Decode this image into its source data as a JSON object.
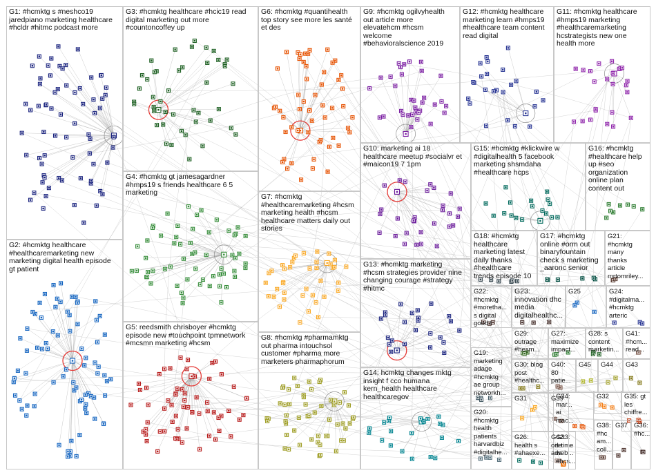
{
  "groups": [
    {
      "id": "G1",
      "label": "G1: #hcmktg s #neshco19\njaredpiano marketing healthcare\n#hcldr #hitmc podcast more",
      "color": "#1a237e",
      "nodes": 70
    },
    {
      "id": "G2",
      "label": "G2: #hcmktg healthcare\n#healthcaremarketing new\nmarketing digital health episode\ngt patient",
      "color": "#1565c0",
      "nodes": 80
    },
    {
      "id": "G3",
      "label": "G3: #hcmktg healthcare #hcic19 read\ndigital marketing out more\n#countoncoffey up",
      "color": "#1b5e20",
      "nodes": 45
    },
    {
      "id": "G4",
      "label": "G4: #hcmktg gt jamesagardner\n#hmps19 s friends healthcare 6 5\nmarketing",
      "color": "#388e3c",
      "nodes": 60
    },
    {
      "id": "G5",
      "label": "G5: reedsmith chrisboyer #hcmktg\nepisode new #touchpoint tpmnetwork\n#mcsmn marketing #hcsm",
      "color": "#b71c1c",
      "nodes": 65
    },
    {
      "id": "G6",
      "label": "G6: #hcmktg #quantihealth\ntop story see more les santé\net des",
      "color": "#e65100",
      "nodes": 55
    },
    {
      "id": "G7",
      "label": "G7: #hcmktg\n#healthcaremarketing #hcsm\nmarketing health #hcsm\nhealthcare matters daily out\nstories",
      "color": "#f9a825",
      "nodes": 40
    },
    {
      "id": "G8",
      "label": "G8: #hcmktg #pharmamktg\nout pharma intouchsol\ncustomer #pharma more\nmarketers pharmaphorum",
      "color": "#9e9d24",
      "nodes": 55
    },
    {
      "id": "G9",
      "label": "G9: #hcmktg ogilvyhealth\nout article more\nelevatehcm #hcsm\nwelcome\n#behavioralscience 2019",
      "color": "#7b1fa2",
      "nodes": 35
    },
    {
      "id": "G10",
      "label": "G10: marketing ai 18\nhealthcare meetup #socialvr et\n#maicon19 7 1pm",
      "color": "#6a1b9a",
      "nodes": 30
    },
    {
      "id": "G11",
      "label": "G11: #hcmktg healthcare\n#hmps19 marketing\n#healthcaremarketing\nhcstrategists new one\nhealth more",
      "color": "#8e24aa",
      "nodes": 25
    },
    {
      "id": "G12",
      "label": "G12: #hcmktg healthcare\nmarketing learn #hmps19\n#healthcare team content\nread digital",
      "color": "#283593",
      "nodes": 25
    },
    {
      "id": "G13",
      "label": "G13: #hcmktg marketing\n#hcsm strategies provider nine\nchanging courage #strategy\n#hitmc",
      "color": "#1a237e",
      "nodes": 25
    },
    {
      "id": "G14",
      "label": "G14: hcmktg changes mktg\ninsight f cco humana\nkern_health healthcare\nhealthcaregov",
      "color": "#00838f",
      "nodes": 22
    },
    {
      "id": "G15",
      "label": "G15: #hcmktg #klickwire w\n#digitalhealth 5 facebook\nmarketing shsmdaha\n#healthcare hcps",
      "color": "#00695c",
      "nodes": 18
    },
    {
      "id": "G16",
      "label": "G16: #hcmktg\n#healthcare help\nup #seo\norganization\nonline plan\ncontent out",
      "color": "#2e7d32",
      "nodes": 8
    },
    {
      "id": "G17",
      "label": "G17: #hcmktg\nonline #orm out\nbinaryfountain\ncheck s marketing\n_aaronc senior",
      "color": "#004d40",
      "nodes": 6
    },
    {
      "id": "G18",
      "label": "G18: #hcmktg\nhealthcare\nmarketing latest\ndaily thanks\n#healthcare\ntrends episode 10",
      "color": "#37474f",
      "nodes": 6
    },
    {
      "id": "G19",
      "label": "G19:\nmarketing\nadage\n#hcmktg\nae group\nnetworkh...",
      "color": "#455a64",
      "nodes": 4
    },
    {
      "id": "G20",
      "label": "G20:\n#hcmktg\nhealth\npatients\nharvardbiz\n#digitalhe...",
      "color": "#546e7a",
      "nodes": 4
    },
    {
      "id": "G21",
      "label": "G21:\n#hcmktg\nmany\nthanks\narticle\nmrtomriley...",
      "color": "#5d4037",
      "nodes": 3
    },
    {
      "id": "G22",
      "label": "G22:\n#hcmktg\n#moretha...\ns digital\ngood t",
      "color": "#4e342e",
      "nodes": 3
    },
    {
      "id": "G23",
      "label": "G23:\ninnovation dhc\nmedia\ndigitalhealthc...",
      "color": "#3e2723",
      "nodes": 3
    },
    {
      "id": "G24",
      "label": "G24:\n#digitalma...\n#hcmktg\narteric",
      "color": "#283593",
      "nodes": 3
    },
    {
      "id": "G25",
      "label": "G25",
      "color": "#1565c0",
      "nodes": 3
    },
    {
      "id": "G26",
      "label": "G26:\nhealth s\n#ahaexe...",
      "color": "#00695c",
      "nodes": 3
    },
    {
      "id": "G27",
      "label": "G27:\nmaximize\nimpact...",
      "color": "#2e7d32",
      "nodes": 3
    },
    {
      "id": "G28",
      "label": "G28: s\ncontent\nmarketin...",
      "color": "#1b5e20",
      "nodes": 3
    },
    {
      "id": "G29",
      "label": "G29:\noutrage\n#hesm...",
      "color": "#33691e",
      "nodes": 3
    },
    {
      "id": "G30",
      "label": "G30: blog\npost\n#healthc...",
      "color": "#827717",
      "nodes": 3
    },
    {
      "id": "G31",
      "label": "G31",
      "color": "#f9a825",
      "nodes": 3
    },
    {
      "id": "G32",
      "label": "G32",
      "color": "#f57f17",
      "nodes": 3
    },
    {
      "id": "G33",
      "label": "G33:\ns time\nweb...\n#hcs...",
      "color": "#ef6c00",
      "nodes": 3
    },
    {
      "id": "G34",
      "label": "G34:\nmar...\nai\nmac...",
      "color": "#e65100",
      "nodes": 3
    },
    {
      "id": "G35",
      "label": "G35: gt\nles\nchiffre...",
      "color": "#bf360c",
      "nodes": 3
    },
    {
      "id": "G36",
      "label": "G36:\n#hc...",
      "color": "#3e2723",
      "nodes": 2
    },
    {
      "id": "G37",
      "label": "G37",
      "color": "#4e342e",
      "nodes": 2
    },
    {
      "id": "G38",
      "label": "G38:\n#hc\nam...\ncoll...",
      "color": "#5d4037",
      "nodes": 2
    },
    {
      "id": "G39",
      "label": "G39",
      "color": "#6d4c41",
      "nodes": 2
    },
    {
      "id": "G40",
      "label": "G40:\n80\npatie...",
      "color": "#795548",
      "nodes": 2
    },
    {
      "id": "G41",
      "label": "G41:\n#hcm...\nread...",
      "color": "#8d6e63",
      "nodes": 2
    },
    {
      "id": "G42",
      "label": "G42:\norle\nads",
      "color": "#a1887f",
      "nodes": 2
    },
    {
      "id": "G43",
      "label": "G43",
      "color": "#827717",
      "nodes": 2
    },
    {
      "id": "G44",
      "label": "G44",
      "color": "#9e9d24",
      "nodes": 2
    },
    {
      "id": "G45",
      "label": "G45",
      "color": "#afb42b",
      "nodes": 2
    }
  ],
  "style": {
    "edge_color": "#9e9e9e",
    "panel_border": "#c8c8c8",
    "highlight_ring": "#e53935"
  }
}
